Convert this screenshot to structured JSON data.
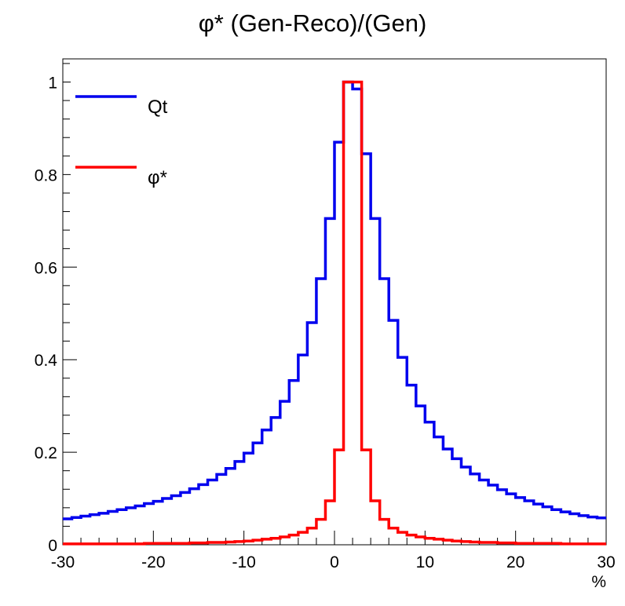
{
  "chart_data": {
    "type": "line",
    "step": true,
    "title": "φ* (Gen-Reco)/(Gen)",
    "xlabel": "%",
    "ylabel": "",
    "xlim": [
      -30,
      30
    ],
    "ylim": [
      0,
      1.05
    ],
    "xticks": [
      "-30",
      "-20",
      "-10",
      "0",
      "10",
      "20",
      "30"
    ],
    "yticks": [
      "0",
      "0.2",
      "0.4",
      "0.6",
      "0.8",
      "1"
    ],
    "bin_width": 1,
    "bin_edges_start": -30,
    "legend_position": "top-left",
    "series": [
      {
        "name": "Qt",
        "color": "#0000ee",
        "values": [
          0.053,
          0.056,
          0.059,
          0.062,
          0.065,
          0.068,
          0.072,
          0.076,
          0.08,
          0.084,
          0.089,
          0.094,
          0.1,
          0.106,
          0.113,
          0.121,
          0.13,
          0.14,
          0.152,
          0.165,
          0.18,
          0.198,
          0.22,
          0.248,
          0.275,
          0.31,
          0.355,
          0.41,
          0.48,
          0.575,
          0.705,
          0.87,
          1.0,
          0.985,
          0.845,
          0.705,
          0.575,
          0.485,
          0.405,
          0.345,
          0.3,
          0.265,
          0.233,
          0.207,
          0.186,
          0.168,
          0.153,
          0.14,
          0.129,
          0.119,
          0.11,
          0.102,
          0.095,
          0.088,
          0.082,
          0.076,
          0.071,
          0.067,
          0.063,
          0.06,
          0.058,
          0.055,
          0.052,
          0.05,
          0.048,
          0.046,
          0.045,
          0.043
        ]
      },
      {
        "name": "φ*",
        "color": "#ff0000",
        "values": [
          0.002,
          0.002,
          0.002,
          0.002,
          0.002,
          0.002,
          0.002,
          0.002,
          0.002,
          0.003,
          0.003,
          0.003,
          0.003,
          0.003,
          0.004,
          0.004,
          0.005,
          0.005,
          0.006,
          0.007,
          0.008,
          0.01,
          0.012,
          0.014,
          0.017,
          0.021,
          0.027,
          0.036,
          0.055,
          0.095,
          0.205,
          1.0,
          1.0,
          0.205,
          0.095,
          0.055,
          0.036,
          0.027,
          0.021,
          0.017,
          0.014,
          0.012,
          0.01,
          0.008,
          0.007,
          0.006,
          0.005,
          0.005,
          0.004,
          0.004,
          0.003,
          0.003,
          0.003,
          0.003,
          0.003,
          0.002,
          0.002,
          0.002,
          0.002,
          0.002,
          0.002,
          0.002
        ]
      }
    ]
  }
}
